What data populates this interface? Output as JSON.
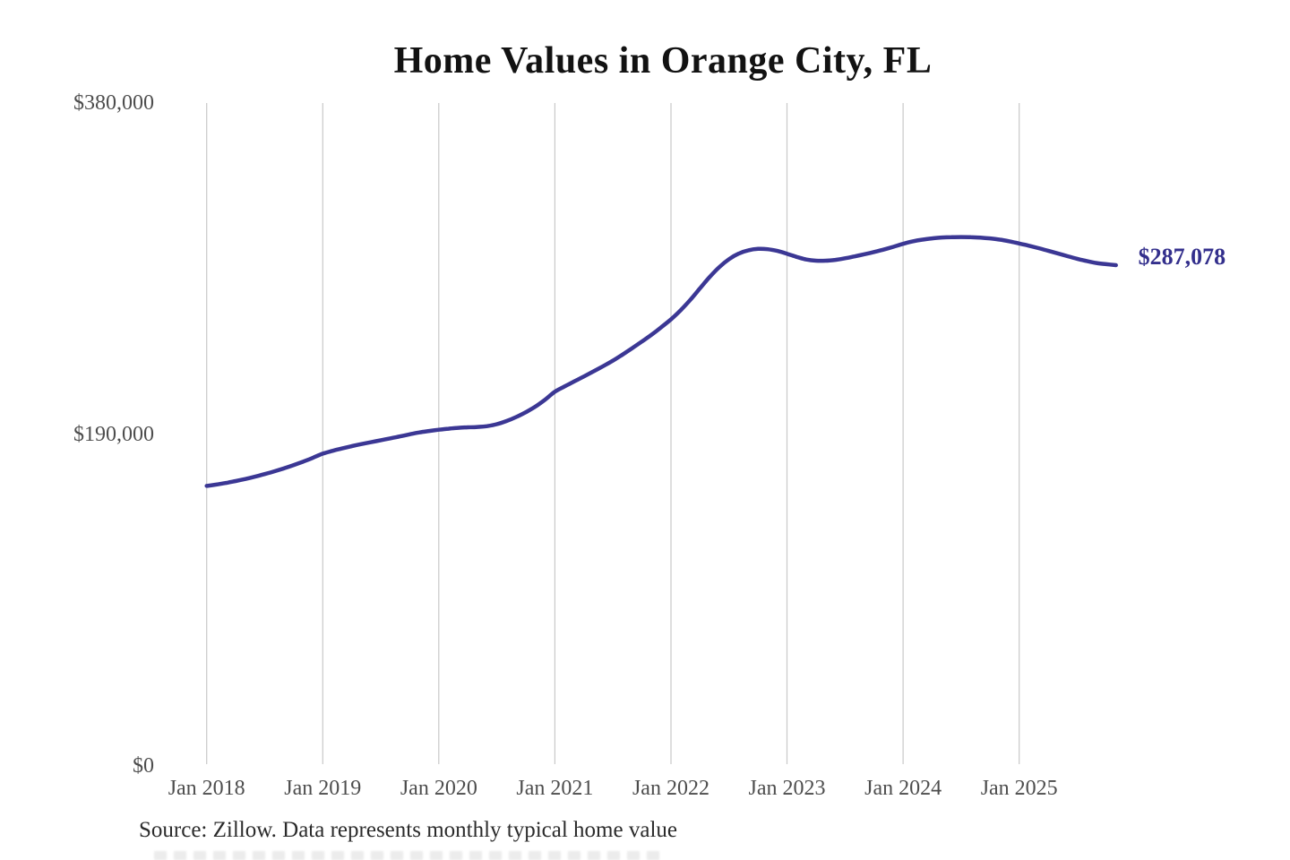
{
  "chart_data": {
    "type": "line",
    "title": "Home Values in Orange City, FL",
    "source_note": "Source: Zillow. Data represents monthly typical home value",
    "series_name": "Monthly typical home value",
    "end_label": "$287,078",
    "latest_value": 287078,
    "ylim": [
      0,
      380000
    ],
    "legend": "none",
    "grid": "vertical-yearly",
    "colors": {
      "line": "#3b3794",
      "end_label": "#332f8c",
      "grid": "#c8c8c8",
      "axis_text": "#4d4d4d",
      "title_text": "#121212",
      "source_text": "#2b2b2b"
    },
    "y_ticks": [
      {
        "label": "$380,000",
        "value": 380000
      },
      {
        "label": "$190,000",
        "value": 190000
      },
      {
        "label": "$0",
        "value": 0
      }
    ],
    "x_ticks": [
      {
        "label": "Jan 2018",
        "year": 2018
      },
      {
        "label": "Jan 2019",
        "year": 2019
      },
      {
        "label": "Jan 2020",
        "year": 2020
      },
      {
        "label": "Jan 2021",
        "year": 2021
      },
      {
        "label": "Jan 2022",
        "year": 2022
      },
      {
        "label": "Jan 2023",
        "year": 2023
      },
      {
        "label": "Jan 2024",
        "year": 2024
      },
      {
        "label": "Jan 2025",
        "year": 2025
      }
    ],
    "points": [
      [
        "2018-01",
        160500
      ],
      [
        "2018-02",
        161300
      ],
      [
        "2018-03",
        162200
      ],
      [
        "2018-04",
        163300
      ],
      [
        "2018-05",
        164500
      ],
      [
        "2018-06",
        165800
      ],
      [
        "2018-07",
        167300
      ],
      [
        "2018-08",
        168900
      ],
      [
        "2018-09",
        170600
      ],
      [
        "2018-10",
        172500
      ],
      [
        "2018-11",
        174500
      ],
      [
        "2018-12",
        176700
      ],
      [
        "2019-01",
        179000
      ],
      [
        "2019-02",
        180600
      ],
      [
        "2019-03",
        182000
      ],
      [
        "2019-04",
        183300
      ],
      [
        "2019-05",
        184500
      ],
      [
        "2019-06",
        185600
      ],
      [
        "2019-07",
        186700
      ],
      [
        "2019-08",
        187800
      ],
      [
        "2019-09",
        188900
      ],
      [
        "2019-10",
        190100
      ],
      [
        "2019-11",
        191200
      ],
      [
        "2019-12",
        192000
      ],
      [
        "2020-01",
        192700
      ],
      [
        "2020-02",
        193300
      ],
      [
        "2020-03",
        193800
      ],
      [
        "2020-04",
        194100
      ],
      [
        "2020-05",
        194300
      ],
      [
        "2020-06",
        194800
      ],
      [
        "2020-07",
        195900
      ],
      [
        "2020-08",
        197700
      ],
      [
        "2020-09",
        200000
      ],
      [
        "2020-10",
        202800
      ],
      [
        "2020-11",
        206000
      ],
      [
        "2020-12",
        210000
      ],
      [
        "2021-01",
        214500
      ],
      [
        "2021-02",
        217500
      ],
      [
        "2021-03",
        220400
      ],
      [
        "2021-04",
        223300
      ],
      [
        "2021-05",
        226200
      ],
      [
        "2021-06",
        229200
      ],
      [
        "2021-07",
        232300
      ],
      [
        "2021-08",
        235800
      ],
      [
        "2021-09",
        239500
      ],
      [
        "2021-10",
        243300
      ],
      [
        "2021-11",
        247200
      ],
      [
        "2021-12",
        251500
      ],
      [
        "2022-01",
        256000
      ],
      [
        "2022-02",
        261200
      ],
      [
        "2022-03",
        267200
      ],
      [
        "2022-04",
        273800
      ],
      [
        "2022-05",
        280300
      ],
      [
        "2022-06",
        286000
      ],
      [
        "2022-07",
        290500
      ],
      [
        "2022-08",
        293700
      ],
      [
        "2022-09",
        295600
      ],
      [
        "2022-10",
        296400
      ],
      [
        "2022-11",
        296200
      ],
      [
        "2022-12",
        295200
      ],
      [
        "2023-01",
        293600
      ],
      [
        "2023-02",
        291800
      ],
      [
        "2023-03",
        290300
      ],
      [
        "2023-04",
        289600
      ],
      [
        "2023-05",
        289600
      ],
      [
        "2023-06",
        290100
      ],
      [
        "2023-07",
        291000
      ],
      [
        "2023-08",
        292100
      ],
      [
        "2023-09",
        293300
      ],
      [
        "2023-10",
        294600
      ],
      [
        "2023-11",
        296000
      ],
      [
        "2023-12",
        297600
      ],
      [
        "2024-01",
        299300
      ],
      [
        "2024-02",
        300700
      ],
      [
        "2024-03",
        301700
      ],
      [
        "2024-04",
        302400
      ],
      [
        "2024-05",
        302900
      ],
      [
        "2024-06",
        303100
      ],
      [
        "2024-07",
        303200
      ],
      [
        "2024-08",
        303100
      ],
      [
        "2024-09",
        302800
      ],
      [
        "2024-10",
        302400
      ],
      [
        "2024-11",
        301700
      ],
      [
        "2024-12",
        300700
      ],
      [
        "2025-01",
        299500
      ],
      [
        "2025-02",
        298200
      ],
      [
        "2025-03",
        296800
      ],
      [
        "2025-04",
        295300
      ],
      [
        "2025-05",
        293800
      ],
      [
        "2025-06",
        292200
      ],
      [
        "2025-07",
        290700
      ],
      [
        "2025-08",
        289400
      ],
      [
        "2025-09",
        288300
      ],
      [
        "2025-10",
        287600
      ],
      [
        "2025-11",
        287078
      ]
    ]
  }
}
